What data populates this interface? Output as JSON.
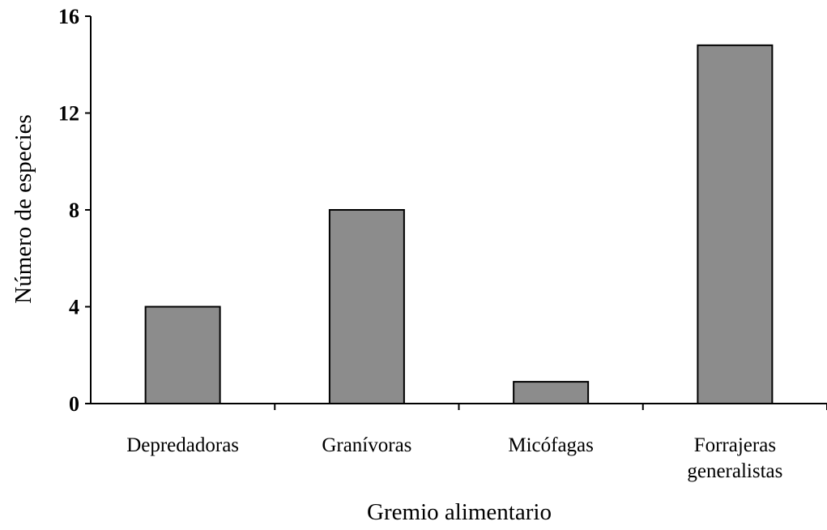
{
  "chart_data": {
    "type": "bar",
    "categories": [
      [
        "Depredadoras"
      ],
      [
        "Granívoras"
      ],
      [
        "Micófagas"
      ],
      [
        "Forrajeras",
        "generalistas"
      ]
    ],
    "values": [
      4,
      8,
      0.9,
      14.8
    ],
    "xlabel": "Gremio alimentario",
    "ylabel": "Número de especies",
    "ylim": [
      0,
      16
    ],
    "yticks": [
      "0",
      "4",
      "8",
      "12",
      "16"
    ],
    "grid": false,
    "colors": {
      "bar_fill": "#8c8c8c",
      "bar_stroke": "#000000",
      "axis": "#000000"
    }
  }
}
